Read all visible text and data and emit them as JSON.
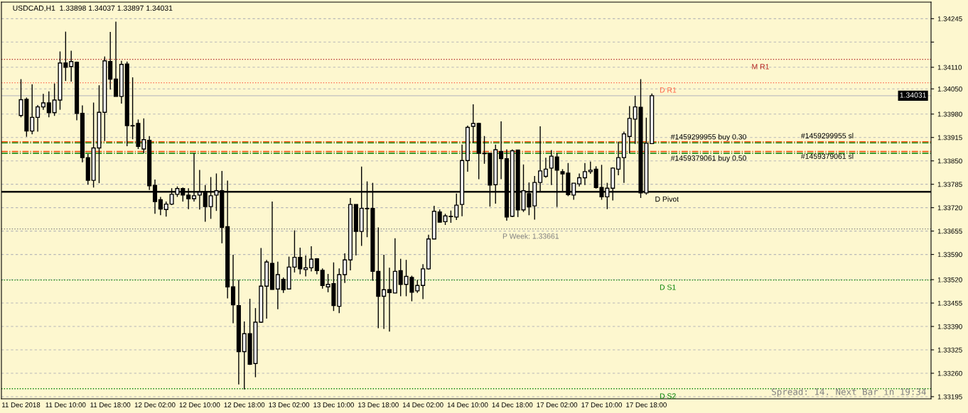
{
  "chart_data": {
    "type": "candlestick",
    "title": "USDCAD,H1  1.33898 1.34037 1.33897 1.34031",
    "categories": [
      "11 Dec 2018",
      null,
      null,
      null,
      null,
      null,
      null,
      null,
      "11 Dec 10:00",
      null,
      null,
      null,
      null,
      null,
      null,
      null,
      "11 Dec 18:00",
      null,
      null,
      null,
      null,
      null,
      null,
      null,
      "12 Dec 02:00",
      null,
      null,
      null,
      null,
      null,
      null,
      null,
      "12 Dec 10:00",
      null,
      null,
      null,
      null,
      null,
      null,
      null,
      "12 Dec 18:00",
      null,
      null,
      null,
      null,
      null,
      null,
      null,
      "13 Dec 02:00",
      null,
      null,
      null,
      null,
      null,
      null,
      null,
      "13 Dec 10:00",
      null,
      null,
      null,
      null,
      null,
      null,
      null,
      "13 Dec 18:00",
      null,
      null,
      null,
      null,
      null,
      null,
      null,
      "14 Dec 02:00",
      null,
      null,
      null,
      null,
      null,
      null,
      null,
      "14 Dec 10:00",
      null,
      null,
      null,
      null,
      null,
      null,
      null,
      "14 Dec 18:00",
      null,
      null,
      null,
      null,
      null,
      null,
      null,
      "17 Dec 02:00",
      null,
      null,
      null,
      null,
      null,
      null,
      null,
      "17 Dec 10:00",
      null,
      null,
      null,
      null,
      null,
      null,
      null,
      "17 Dec 18:00",
      null,
      null,
      null,
      null,
      null,
      null,
      null,
      null,
      null,
      null,
      null,
      null,
      null,
      null,
      null,
      null,
      null,
      null,
      null,
      null,
      null,
      null,
      null,
      null,
      null,
      null,
      null,
      null,
      null,
      null,
      null,
      null,
      null,
      null,
      null,
      null,
      null,
      null,
      null,
      null,
      null,
      null,
      null,
      null,
      null,
      null,
      null,
      null,
      null,
      null,
      null
    ],
    "ohlc": [
      [
        1.33976,
        1.34077,
        1.33971,
        1.3402
      ],
      [
        1.34021,
        1.34026,
        1.33917,
        1.33933
      ],
      [
        1.33933,
        1.34063,
        1.33924,
        1.33971
      ],
      [
        1.33971,
        1.34005,
        1.33931,
        1.34
      ],
      [
        1.34,
        1.34036,
        1.33992,
        1.34011
      ],
      [
        1.34011,
        1.34043,
        1.33971,
        1.33984
      ],
      [
        1.33984,
        1.34065,
        1.33975,
        1.34019
      ],
      [
        1.34019,
        1.34154,
        1.33992,
        1.34122
      ],
      [
        1.34122,
        1.34209,
        1.34072,
        1.3411
      ],
      [
        1.34112,
        1.34156,
        1.3407,
        1.34126
      ],
      [
        1.34124,
        1.34126,
        1.33963,
        1.33982
      ],
      [
        1.33982,
        1.34004,
        1.33846,
        1.33859
      ],
      [
        1.33859,
        1.33869,
        1.33784,
        1.33796
      ],
      [
        1.33796,
        1.34012,
        1.33776,
        1.33886
      ],
      [
        1.33886,
        1.3406,
        1.33788,
        1.33985
      ],
      [
        1.33985,
        1.3414,
        1.33905,
        1.34128
      ],
      [
        1.34126,
        1.34208,
        1.34048,
        1.34077
      ],
      [
        1.34077,
        1.34237,
        1.34029,
        1.34029
      ],
      [
        1.34029,
        1.34128,
        1.34009,
        1.34118
      ],
      [
        1.34119,
        1.34126,
        1.33891,
        1.33948
      ],
      [
        1.33948,
        1.34082,
        1.3391,
        1.33947
      ],
      [
        1.33954,
        1.33965,
        1.33883,
        1.3389
      ],
      [
        1.33883,
        1.33968,
        1.33871,
        1.33909
      ],
      [
        1.33907,
        1.33919,
        1.33769,
        1.33781
      ],
      [
        1.33782,
        1.33798,
        1.33703,
        1.33737
      ],
      [
        1.33742,
        1.3375,
        1.33699,
        1.33716
      ],
      [
        1.33715,
        1.33737,
        1.33695,
        1.3373
      ],
      [
        1.3373,
        1.33774,
        1.33727,
        1.33757
      ],
      [
        1.33757,
        1.33779,
        1.3375,
        1.33773
      ],
      [
        1.33773,
        1.33776,
        1.33737,
        1.33755
      ],
      [
        1.33755,
        1.33774,
        1.33716,
        1.33745
      ],
      [
        1.33745,
        1.33871,
        1.33737,
        1.33753
      ],
      [
        1.33755,
        1.33825,
        1.33715,
        1.33763
      ],
      [
        1.33765,
        1.33783,
        1.33681,
        1.33723
      ],
      [
        1.33723,
        1.33805,
        1.33689,
        1.33753
      ],
      [
        1.33755,
        1.33815,
        1.33711,
        1.33767
      ],
      [
        1.33767,
        1.33822,
        1.33621,
        1.33665
      ],
      [
        1.33667,
        1.33795,
        1.33468,
        1.335
      ],
      [
        1.335,
        1.33589,
        1.33399,
        1.3345
      ],
      [
        1.33448,
        1.33519,
        1.33229,
        1.3332
      ],
      [
        1.3332,
        1.33404,
        1.33215,
        1.3337
      ],
      [
        1.3337,
        1.33467,
        1.33283,
        1.33285
      ],
      [
        1.33287,
        1.33441,
        1.33249,
        1.33402
      ],
      [
        1.33402,
        1.33608,
        1.334,
        1.33502
      ],
      [
        1.33502,
        1.33575,
        1.33412,
        1.33569
      ],
      [
        1.33565,
        1.33737,
        1.33492,
        1.33493
      ],
      [
        1.33494,
        1.3357,
        1.33438,
        1.33534
      ],
      [
        1.33521,
        1.33526,
        1.33483,
        1.33492
      ],
      [
        1.33494,
        1.33584,
        1.33494,
        1.33555
      ],
      [
        1.33555,
        1.33657,
        1.3354,
        1.33582
      ],
      [
        1.33582,
        1.33609,
        1.33535,
        1.3355
      ],
      [
        1.33548,
        1.33587,
        1.33529,
        1.33553
      ],
      [
        1.33553,
        1.33613,
        1.33543,
        1.33577
      ],
      [
        1.33578,
        1.3358,
        1.33535,
        1.33545
      ],
      [
        1.33546,
        1.33551,
        1.33495,
        1.33504
      ],
      [
        1.335,
        1.33536,
        1.33485,
        1.33507
      ],
      [
        1.33509,
        1.33568,
        1.33433,
        1.33448
      ],
      [
        1.33446,
        1.33551,
        1.33427,
        1.33534
      ],
      [
        1.33534,
        1.33593,
        1.33511,
        1.33575
      ],
      [
        1.33575,
        1.33747,
        1.33546,
        1.33729
      ],
      [
        1.33729,
        1.33729,
        1.33587,
        1.33654
      ],
      [
        1.33654,
        1.33834,
        1.33614,
        1.33718
      ],
      [
        1.33718,
        1.33793,
        1.33638,
        1.33717
      ],
      [
        1.33718,
        1.33789,
        1.33517,
        1.33543
      ],
      [
        1.33543,
        1.33665,
        1.33385,
        1.33474
      ],
      [
        1.33474,
        1.33589,
        1.33383,
        1.33492
      ],
      [
        1.33492,
        1.33553,
        1.33376,
        1.33484
      ],
      [
        1.33483,
        1.33635,
        1.33482,
        1.33543
      ],
      [
        1.33545,
        1.33578,
        1.33474,
        1.33507
      ],
      [
        1.33507,
        1.33575,
        1.33474,
        1.33529
      ],
      [
        1.33526,
        1.33531,
        1.3346,
        1.33485
      ],
      [
        1.33489,
        1.33519,
        1.33483,
        1.33504
      ],
      [
        1.33504,
        1.33563,
        1.33466,
        1.3355
      ],
      [
        1.3355,
        1.33645,
        1.33548,
        1.33633
      ],
      [
        1.33633,
        1.33725,
        1.33633,
        1.3371
      ],
      [
        1.33708,
        1.33715,
        1.33679,
        1.3368
      ],
      [
        1.33681,
        1.33703,
        1.33672,
        1.33697
      ],
      [
        1.33695,
        1.33712,
        1.33678,
        1.33696
      ],
      [
        1.33694,
        1.33759,
        1.33686,
        1.33727
      ],
      [
        1.33729,
        1.33895,
        1.33696,
        1.33851
      ],
      [
        1.33851,
        1.33948,
        1.3382,
        1.33943
      ],
      [
        1.33946,
        1.34007,
        1.339,
        1.33954
      ],
      [
        1.33954,
        1.33956,
        1.33799,
        1.33871
      ],
      [
        1.33871,
        1.33919,
        1.33842,
        1.3387
      ],
      [
        1.33871,
        1.33871,
        1.33723,
        1.33783
      ],
      [
        1.33784,
        1.33895,
        1.33731,
        1.33881
      ],
      [
        1.33876,
        1.3396,
        1.33799,
        1.33856
      ],
      [
        1.33856,
        1.33882,
        1.33684,
        1.33694
      ],
      [
        1.33696,
        1.33882,
        1.33694,
        1.33878
      ],
      [
        1.3388,
        1.3388,
        1.33694,
        1.33714
      ],
      [
        1.33714,
        1.3384,
        1.33708,
        1.33767
      ],
      [
        1.33759,
        1.3379,
        1.33699,
        1.33722
      ],
      [
        1.33725,
        1.33808,
        1.33687,
        1.3379
      ],
      [
        1.3379,
        1.33946,
        1.33764,
        1.33822
      ],
      [
        1.33807,
        1.33859,
        1.33803,
        1.33827
      ],
      [
        1.3383,
        1.3388,
        1.33783,
        1.33863
      ],
      [
        1.33861,
        1.33871,
        1.33722,
        1.33824
      ],
      [
        1.3382,
        1.33827,
        1.33764,
        1.33814
      ],
      [
        1.33816,
        1.33844,
        1.33752,
        1.33756
      ],
      [
        1.33755,
        1.33788,
        1.33742,
        1.33788
      ],
      [
        1.33786,
        1.33815,
        1.33779,
        1.33803
      ],
      [
        1.33803,
        1.33844,
        1.33783,
        1.3382
      ],
      [
        1.3382,
        1.33848,
        1.33814,
        1.33824
      ],
      [
        1.33827,
        1.33835,
        1.33773,
        1.33776
      ],
      [
        1.33776,
        1.33839,
        1.33742,
        1.3375
      ],
      [
        1.3375,
        1.33789,
        1.33716,
        1.33774
      ],
      [
        1.33774,
        1.33832,
        1.3374,
        1.3383
      ],
      [
        1.33827,
        1.33903,
        1.3381,
        1.33859
      ],
      [
        1.33859,
        1.33931,
        1.33789,
        1.33925
      ],
      [
        1.33918,
        1.34002,
        1.33871,
        1.33968
      ],
      [
        1.33966,
        1.34031,
        1.33897,
        1.34
      ],
      [
        1.33999,
        1.34077,
        1.33747,
        1.33761
      ],
      [
        1.33761,
        1.3397,
        1.33756,
        1.33899
      ],
      [
        1.33898,
        1.34037,
        1.33897,
        1.34031
      ],
      null,
      null,
      null,
      null,
      null,
      null,
      null,
      null,
      null,
      null,
      null,
      null,
      null,
      null,
      null,
      null,
      null,
      null,
      null,
      null,
      null,
      null,
      null,
      null,
      null,
      null,
      null,
      null,
      null,
      null,
      null,
      null,
      null,
      null,
      null,
      null,
      null,
      null,
      null,
      null,
      null,
      null,
      null,
      null,
      null,
      null,
      null,
      null,
      null,
      null
    ],
    "ylim": [
      1.33189,
      1.34291
    ],
    "yticks": [
      {
        "value": 1.34245,
        "label": "1.34245"
      },
      {
        "value": 1.3418,
        "label": null
      },
      {
        "value": 1.3411,
        "label": "1.34110"
      },
      {
        "value": 1.3405,
        "label": "1.34050"
      },
      {
        "value": 1.3398,
        "label": "1.33980"
      },
      {
        "value": 1.33915,
        "label": "1.33915"
      },
      {
        "value": 1.3385,
        "label": "1.33850"
      },
      {
        "value": 1.33785,
        "label": "1.33785"
      },
      {
        "value": 1.3372,
        "label": "1.33720"
      },
      {
        "value": 1.33655,
        "label": "1.33655"
      },
      {
        "value": 1.3359,
        "label": "1.33590"
      },
      {
        "value": 1.3352,
        "label": "1.33520"
      },
      {
        "value": 1.33455,
        "label": "1.33455"
      },
      {
        "value": 1.3339,
        "label": "1.33390"
      },
      {
        "value": 1.33325,
        "label": "1.33325"
      },
      {
        "value": 1.3326,
        "label": "1.33260"
      },
      {
        "value": 1.33195,
        "label": "1.33195"
      }
    ],
    "ref_lines": [
      {
        "axis": "y",
        "value": 1.34132,
        "label": "M R1",
        "color": "#b22222",
        "line_style": "dotted"
      },
      {
        "axis": "y",
        "value": 1.34067,
        "label": "D R1",
        "color": "#ff6347",
        "line_style": "dotted"
      },
      {
        "axis": "y",
        "value": 1.34031,
        "label": "1.34031",
        "color": "#c0c0c0",
        "line_style": "solid"
      },
      {
        "axis": "y",
        "value": 1.33903,
        "label": "#1459299955 sl",
        "color": "#ff4500",
        "line_style": "dashdot"
      },
      {
        "axis": "y",
        "value": 1.339,
        "label": "#1459299955 buy 0.30",
        "color": "#008000",
        "line_style": "dashdot"
      },
      {
        "axis": "y",
        "value": 1.33876,
        "label": "#1459379061 sl",
        "color": "#ff4500",
        "line_style": "dashdot"
      },
      {
        "axis": "y",
        "value": 1.33871,
        "label": "#1459379061 buy 0.50",
        "color": "#008000",
        "line_style": "dashdot"
      },
      {
        "axis": "y",
        "value": 1.33764,
        "label": "D Pivot",
        "color": "#000000",
        "line_style": "solid"
      },
      {
        "axis": "y",
        "value": 1.33661,
        "label": "P Week: 1.33661",
        "color": "#808080",
        "line_style": "dotted"
      },
      {
        "axis": "y",
        "value": 1.33519,
        "label": "D S1",
        "color": "#008000",
        "line_style": "dotted"
      },
      {
        "axis": "y",
        "value": 1.33217,
        "label": "D S2",
        "color": "#008000",
        "line_style": "dotted"
      }
    ],
    "annotations": [
      "Spread: 14. Next Bar in 19:34"
    ],
    "grid": true,
    "legend": false
  }
}
